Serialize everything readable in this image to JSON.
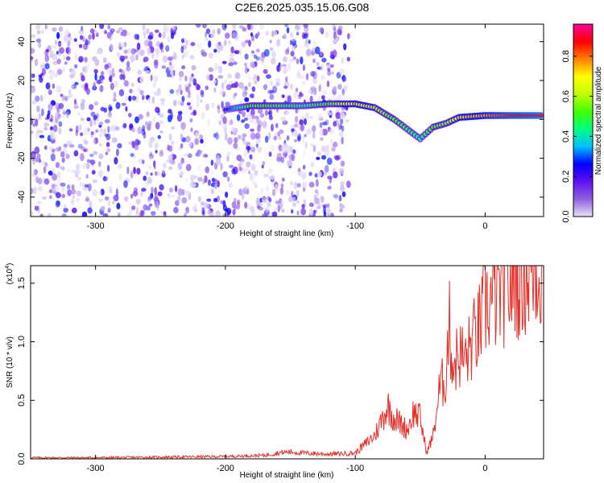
{
  "figure": {
    "title": "C2E6.2025.035.15.06.G08"
  },
  "chart_data": [
    {
      "type": "heatmap",
      "xlabel": "Height of straight line (km)",
      "ylabel": "Frequency (Hz)",
      "xlim": [
        -350,
        45
      ],
      "ylim": [
        -50,
        49
      ],
      "xticks": [
        -300,
        -200,
        -100,
        0
      ],
      "yticks": [
        -40,
        -20,
        0,
        20,
        40
      ],
      "colorbar": {
        "label": "Normalized spectral amplitude",
        "range": [
          0,
          0.96
        ],
        "ticks": [
          "0.0",
          "0.2",
          "0.4",
          "0.6",
          "0.8"
        ],
        "tick_values": [
          0.0,
          0.2,
          0.4,
          0.6,
          0.8
        ],
        "colors": [
          "#e8e0f8",
          "#9060e0",
          "#6010f0",
          "#0000ff",
          "#00c0ff",
          "#00ff80",
          "#40ff00",
          "#c0ff00",
          "#ffff00",
          "#ff8000",
          "#ff0000",
          "#ff00a0"
        ]
      },
      "ridge_points": [
        {
          "x": -200,
          "y": 5,
          "amp": 0.25
        },
        {
          "x": -180,
          "y": 7,
          "amp": 0.55
        },
        {
          "x": -160,
          "y": 7,
          "amp": 0.5
        },
        {
          "x": -140,
          "y": 7,
          "amp": 0.45
        },
        {
          "x": -120,
          "y": 8,
          "amp": 0.55
        },
        {
          "x": -100,
          "y": 8,
          "amp": 0.75
        },
        {
          "x": -85,
          "y": 6,
          "amp": 0.65
        },
        {
          "x": -70,
          "y": 0,
          "amp": 0.55
        },
        {
          "x": -60,
          "y": -5,
          "amp": 0.5
        },
        {
          "x": -50,
          "y": -10,
          "amp": 0.45
        },
        {
          "x": -40,
          "y": -4,
          "amp": 0.55
        },
        {
          "x": -30,
          "y": -2,
          "amp": 0.6
        },
        {
          "x": -20,
          "y": 1,
          "amp": 0.75
        },
        {
          "x": 0,
          "y": 2,
          "amp": 0.8
        },
        {
          "x": 20,
          "y": 2,
          "amp": 0.9
        },
        {
          "x": 45,
          "y": 2,
          "amp": 0.95
        }
      ],
      "noise_region": {
        "x_start": -350,
        "x_end": -105
      }
    },
    {
      "type": "line",
      "xlabel": "Height of straight line (km)",
      "ylabel": "SNR (10 * v/v)",
      "y_multiplier_label": "(x10",
      "y_multiplier_exp": "4",
      "xlim": [
        -350,
        45
      ],
      "ylim": [
        0,
        1.65
      ],
      "xticks": [
        -300,
        -200,
        -100,
        0
      ],
      "yticks": [
        0.0,
        0.5,
        1.0,
        1.5
      ],
      "ytick_labels": [
        "0.0",
        "0.5",
        "1.0",
        "1.5"
      ],
      "series": [
        {
          "color": "#e8302a",
          "x": [
            -350,
            -300,
            -250,
            -200,
            -170,
            -160,
            -150,
            -140,
            -120,
            -100,
            -95,
            -85,
            -75,
            -70,
            -65,
            -60,
            -55,
            -50,
            -45,
            -40,
            -35,
            -30,
            -28,
            -25,
            -20,
            -15,
            -10,
            -5,
            0,
            5,
            10,
            15,
            20,
            25,
            30,
            35,
            40,
            45
          ],
          "y": [
            0.01,
            0.01,
            0.015,
            0.02,
            0.03,
            0.05,
            0.06,
            0.05,
            0.04,
            0.05,
            0.1,
            0.2,
            0.45,
            0.35,
            0.3,
            0.25,
            0.4,
            0.35,
            0.05,
            0.2,
            0.6,
            0.7,
            1.2,
            0.8,
            0.9,
            0.85,
            1.0,
            1.1,
            1.3,
            1.35,
            1.4,
            1.45,
            1.5,
            1.55,
            1.58,
            1.6,
            1.62,
            1.63
          ]
        }
      ]
    }
  ]
}
